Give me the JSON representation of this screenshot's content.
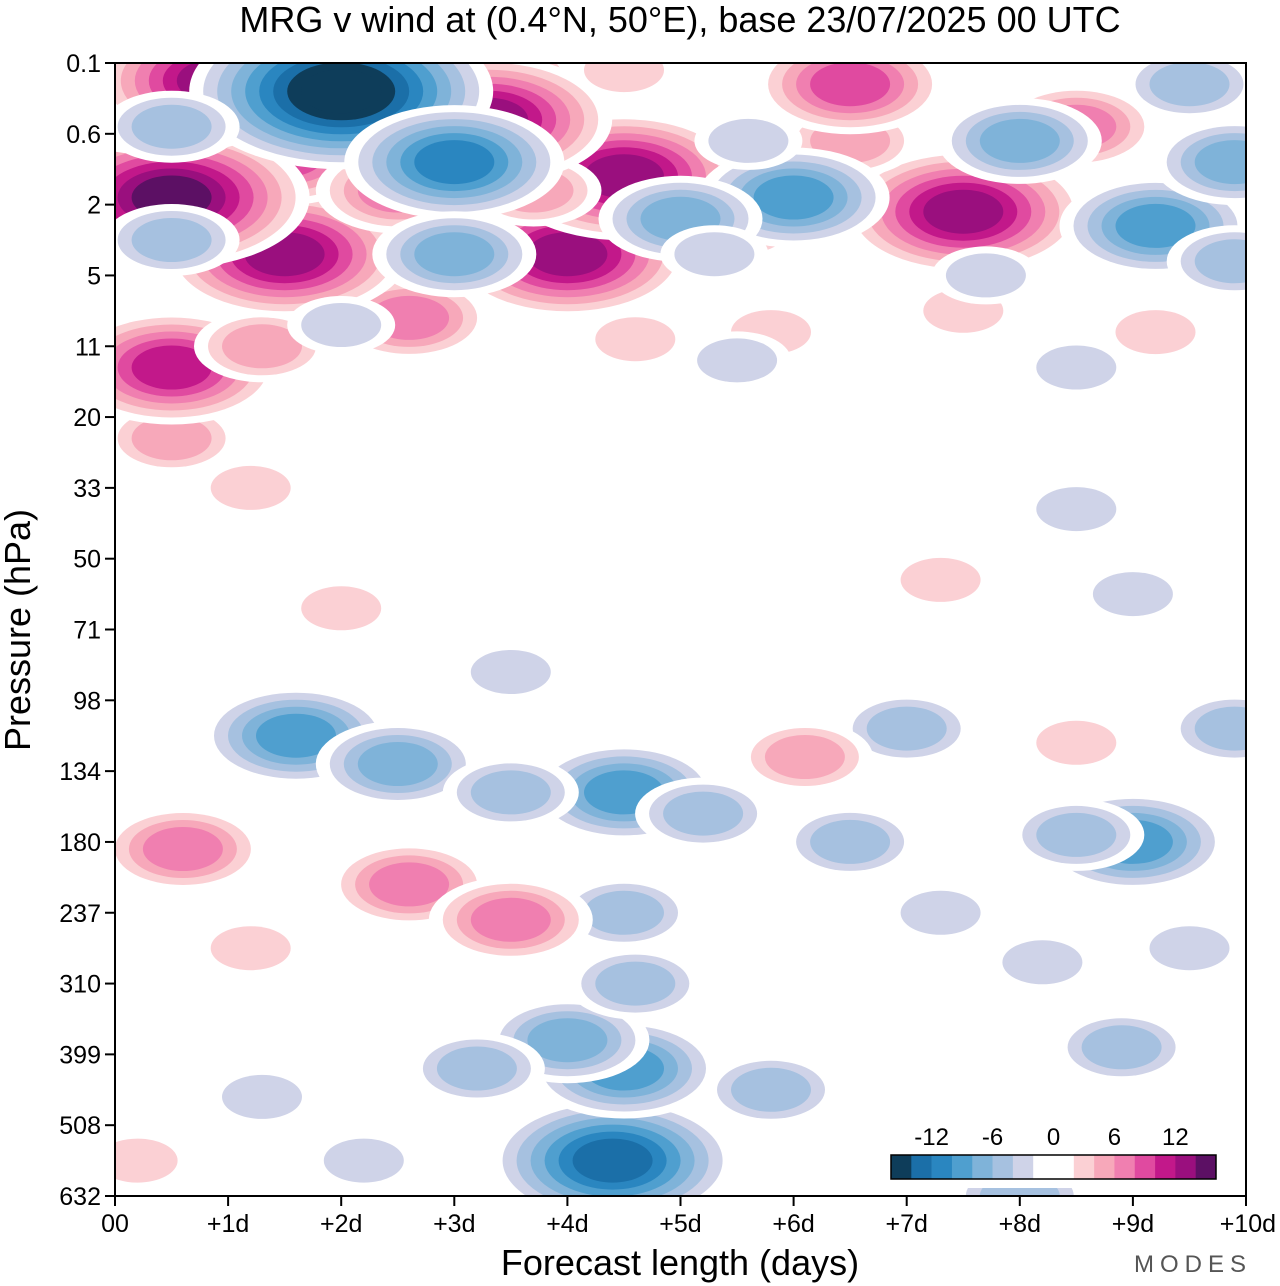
{
  "chart_data": {
    "type": "heatmap",
    "subtype": "filled-contour",
    "title": "MRG v wind at (0.4°N, 50°E),  base 23/07/2025  00 UTC",
    "xlabel": "Forecast length (days)",
    "ylabel": "Pressure (hPa)",
    "x_ticks": [
      "00",
      "+1d",
      "+2d",
      "+3d",
      "+4d",
      "+5d",
      "+6d",
      "+7d",
      "+8d",
      "+9d",
      "+10d"
    ],
    "xlim_days": [
      0,
      10
    ],
    "y_ticks": [
      "0.1",
      "0.6",
      "2",
      "5",
      "11",
      "20",
      "33",
      "50",
      "71",
      "98",
      "134",
      "180",
      "237",
      "310",
      "399",
      "508",
      "632"
    ],
    "y_scale": "log-pressure, top to bottom",
    "colorbar": {
      "levels": [
        -16,
        -14,
        -12,
        -10,
        -8,
        -6,
        -4,
        -2,
        0,
        2,
        4,
        6,
        8,
        10,
        12,
        14,
        16
      ],
      "colors": [
        "#0e3d5a",
        "#1b6fa8",
        "#2a86c0",
        "#4f9fcf",
        "#7fb3d9",
        "#a6c1e0",
        "#cfd3e8",
        "#ffffff",
        "#ffffff",
        "#fbd0d4",
        "#f7a8ba",
        "#f07fb0",
        "#e04aa0",
        "#c2188a",
        "#9a0f7e",
        "#5c1064"
      ],
      "tick_labels": [
        "-12",
        "-6",
        "0",
        "6",
        "12"
      ]
    },
    "blobs": [
      {
        "day": 4.4,
        "p_idx": 15.5,
        "v": -13
      },
      {
        "day": 4.5,
        "p_idx": 14.2,
        "v": -9
      },
      {
        "day": 4.0,
        "p_idx": 13.8,
        "v": -7
      },
      {
        "day": 4.6,
        "p_idx": 13.0,
        "v": -6
      },
      {
        "day": 3.2,
        "p_idx": 14.2,
        "v": -5
      },
      {
        "day": 5.8,
        "p_idx": 14.5,
        "v": -5
      },
      {
        "day": 4.5,
        "p_idx": 12.0,
        "v": -6
      },
      {
        "day": 1.6,
        "p_idx": 9.5,
        "v": -10
      },
      {
        "day": 2.5,
        "p_idx": 9.9,
        "v": -8
      },
      {
        "day": 4.5,
        "p_idx": 10.3,
        "v": -9
      },
      {
        "day": 3.5,
        "p_idx": 10.3,
        "v": -6
      },
      {
        "day": 5.2,
        "p_idx": 10.6,
        "v": -5
      },
      {
        "day": 6.5,
        "p_idx": 11.0,
        "v": -5
      },
      {
        "day": 9.0,
        "p_idx": 11.0,
        "v": -9
      },
      {
        "day": 8.5,
        "p_idx": 10.9,
        "v": -6
      },
      {
        "day": 7.0,
        "p_idx": 9.4,
        "v": -5
      },
      {
        "day": 9.9,
        "p_idx": 9.4,
        "v": -6
      },
      {
        "day": 8.9,
        "p_idx": 13.9,
        "v": -5
      },
      {
        "day": 8.2,
        "p_idx": 12.7,
        "v": -4
      },
      {
        "day": 7.3,
        "p_idx": 12.0,
        "v": -4
      },
      {
        "day": 9.5,
        "p_idx": 12.5,
        "v": -4
      },
      {
        "day": 1.3,
        "p_idx": 14.6,
        "v": -4
      },
      {
        "day": 2.2,
        "p_idx": 15.5,
        "v": -4
      },
      {
        "day": 3.5,
        "p_idx": 8.6,
        "v": -4
      },
      {
        "day": 9.0,
        "p_idx": 7.5,
        "v": -4
      },
      {
        "day": 8.5,
        "p_idx": 6.3,
        "v": -3
      },
      {
        "day": 8.0,
        "p_idx": 16.0,
        "v": -5
      },
      {
        "day": 0.6,
        "p_idx": 11.1,
        "v": 7
      },
      {
        "day": 2.6,
        "p_idx": 11.6,
        "v": 8
      },
      {
        "day": 3.5,
        "p_idx": 12.1,
        "v": 8
      },
      {
        "day": 1.2,
        "p_idx": 12.5,
        "v": 4
      },
      {
        "day": 6.1,
        "p_idx": 9.8,
        "v": 6
      },
      {
        "day": 8.5,
        "p_idx": 9.6,
        "v": 4
      },
      {
        "day": 7.3,
        "p_idx": 7.3,
        "v": 3
      },
      {
        "day": 2.0,
        "p_idx": 7.7,
        "v": 3
      },
      {
        "day": 0.2,
        "p_idx": 15.5,
        "v": 4
      },
      {
        "day": 0.5,
        "p_idx": 5.3,
        "v": 5
      },
      {
        "day": 1.2,
        "p_idx": 6.0,
        "v": 4
      },
      {
        "day": 0.5,
        "p_idx": 4.3,
        "v": 12
      },
      {
        "day": 1.3,
        "p_idx": 4.0,
        "v": 6
      },
      {
        "day": 2.6,
        "p_idx": 3.6,
        "v": 8
      },
      {
        "day": 4.6,
        "p_idx": 3.9,
        "v": 4
      },
      {
        "day": 5.8,
        "p_idx": 3.8,
        "v": 3
      },
      {
        "day": 7.5,
        "p_idx": 3.5,
        "v": 3
      },
      {
        "day": 9.2,
        "p_idx": 3.8,
        "v": 3
      },
      {
        "day": 1.5,
        "p_idx": 2.7,
        "v": 14
      },
      {
        "day": 4.0,
        "p_idx": 2.7,
        "v": 13
      },
      {
        "day": 1.5,
        "p_idx": 1.3,
        "v": 10
      },
      {
        "day": 2.5,
        "p_idx": 1.8,
        "v": 7
      },
      {
        "day": 4.5,
        "p_idx": 1.6,
        "v": 13
      },
      {
        "day": 3.7,
        "p_idx": 1.8,
        "v": 5
      },
      {
        "day": 5.5,
        "p_idx": 2.3,
        "v": 5
      },
      {
        "day": 7.5,
        "p_idx": 2.1,
        "v": 14
      },
      {
        "day": 6.5,
        "p_idx": 1.1,
        "v": 5
      },
      {
        "day": 8.5,
        "p_idx": 0.9,
        "v": 8
      },
      {
        "day": 0.5,
        "p_idx": 1.9,
        "v": 15
      },
      {
        "day": 0.4,
        "p_idx": 0.2,
        "v": 17
      },
      {
        "day": 0.9,
        "p_idx": 0.25,
        "v": 14
      },
      {
        "day": 3.0,
        "p_idx": 0.3,
        "v": 14
      },
      {
        "day": 3.3,
        "p_idx": 0.8,
        "v": 13
      },
      {
        "day": 6.5,
        "p_idx": 0.3,
        "v": 9
      },
      {
        "day": 4.5,
        "p_idx": 0.1,
        "v": 3
      },
      {
        "day": 2.0,
        "p_idx": 0.4,
        "v": -17
      },
      {
        "day": 0.5,
        "p_idx": 0.9,
        "v": -6
      },
      {
        "day": 3.0,
        "p_idx": 1.4,
        "v": -11
      },
      {
        "day": 6.0,
        "p_idx": 1.9,
        "v": -10
      },
      {
        "day": 5.0,
        "p_idx": 2.2,
        "v": -8
      },
      {
        "day": 0.5,
        "p_idx": 2.5,
        "v": -5
      },
      {
        "day": 3.0,
        "p_idx": 2.7,
        "v": -8
      },
      {
        "day": 5.3,
        "p_idx": 2.7,
        "v": -4
      },
      {
        "day": 8.0,
        "p_idx": 1.1,
        "v": -8
      },
      {
        "day": 9.2,
        "p_idx": 2.3,
        "v": -9
      },
      {
        "day": 9.9,
        "p_idx": 1.4,
        "v": -8
      },
      {
        "day": 9.9,
        "p_idx": 2.8,
        "v": -5
      },
      {
        "day": 9.5,
        "p_idx": 0.3,
        "v": -5
      },
      {
        "day": 5.6,
        "p_idx": 1.1,
        "v": -3
      },
      {
        "day": 7.7,
        "p_idx": 3.0,
        "v": -3
      },
      {
        "day": 2.0,
        "p_idx": 3.7,
        "v": -3
      },
      {
        "day": 5.5,
        "p_idx": 4.2,
        "v": -4
      },
      {
        "day": 8.5,
        "p_idx": 4.3,
        "v": -4
      }
    ]
  },
  "brand": "MODES"
}
